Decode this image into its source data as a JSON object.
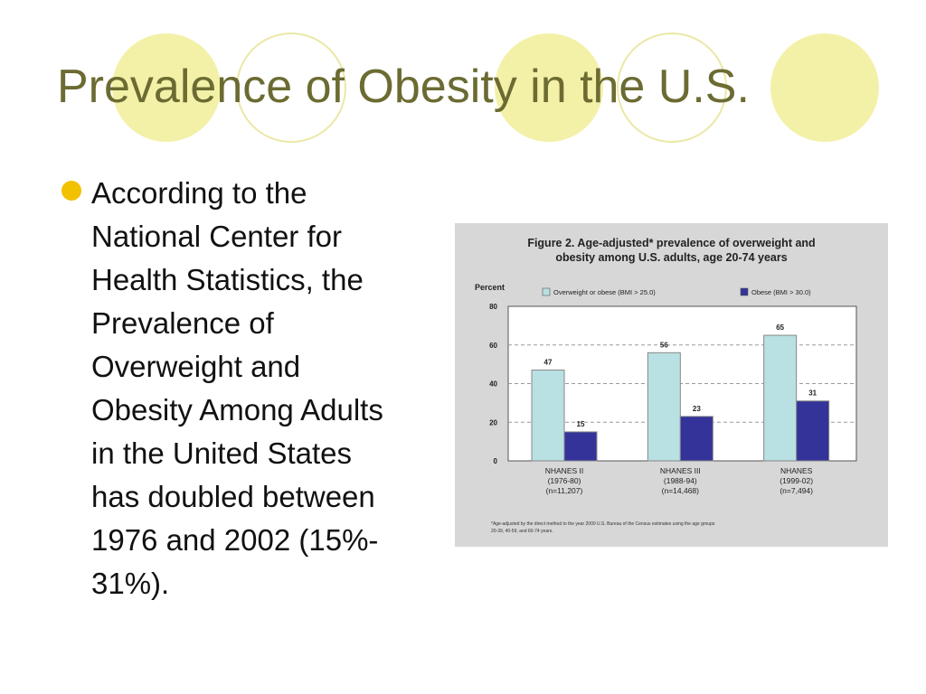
{
  "slide": {
    "title": "Prevalence of Obesity in the U.S.",
    "bullet_lines": [
      "According to the",
      "National Center for",
      "Health Statistics, the",
      "Prevalence of",
      "Overweight and",
      "Obesity Among Adults",
      "in the United States",
      "has doubled between",
      "1976 and 2002 (15%-",
      "31%)."
    ],
    "colors": {
      "title": "#6b6b32",
      "bullet": "#f2c100",
      "circle_fill": "#f3f1a8",
      "circle_stroke": "#e9e6a0"
    }
  },
  "chart_data": {
    "type": "bar",
    "title_lines": [
      "Figure 2. Age-adjusted* prevalence of overweight and",
      "obesity among U.S. adults, age 20-74 years"
    ],
    "ylabel": "Percent",
    "ylim": [
      0,
      80
    ],
    "yticks": [
      0,
      20,
      40,
      60,
      80
    ],
    "grid": true,
    "legend_position": "top",
    "category_lines": [
      [
        "NHANES II",
        "(1976-80)",
        "(n=11,207)"
      ],
      [
        "NHANES III",
        "(1988-94)",
        "(n=14,468)"
      ],
      [
        "NHANES",
        "(1999-02)",
        "(n=7,494)"
      ]
    ],
    "series": [
      {
        "name": "Overweight or obese (BMI > 25.0)",
        "values": [
          47,
          56,
          65
        ],
        "color": "#b9e0e2"
      },
      {
        "name": "Obese (BMI > 30.0)",
        "values": [
          15,
          23,
          31
        ],
        "color": "#33339a"
      }
    ],
    "footnote_lines": [
      "*Age-adjusted by the direct method to the year 2000 U.S. Bureau of the Census estimates using the age groups",
      "20-39, 40-59, and 60-74 years."
    ]
  }
}
